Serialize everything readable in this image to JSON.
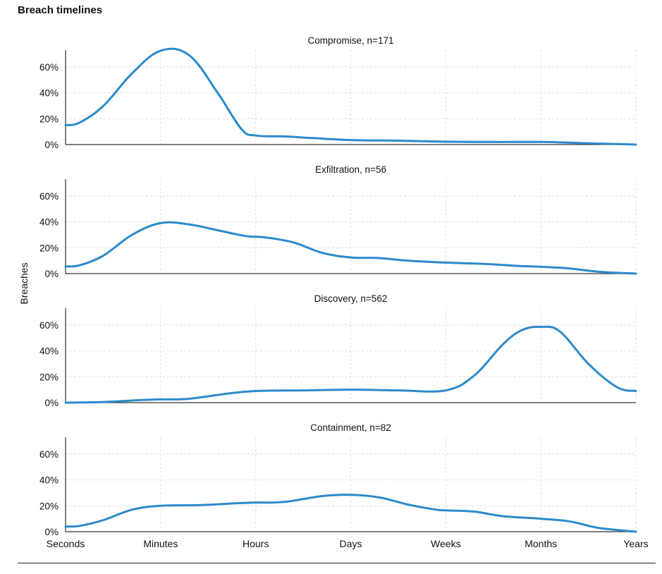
{
  "title": "Breach timelines",
  "chart_data": {
    "type": "area",
    "ylabel": "Breaches",
    "x_categories": [
      "Seconds",
      "Minutes",
      "Hours",
      "Days",
      "Weeks",
      "Months",
      "Years"
    ],
    "y_ticks": [
      "0%",
      "20%",
      "40%",
      "60%"
    ],
    "ylim": [
      0,
      0.73
    ],
    "grid": true,
    "line_color": "#2b8acb",
    "panels": [
      {
        "title": "Compromise, n=171",
        "x": [
          0,
          0.15,
          0.4,
          0.7,
          1.0,
          1.3,
          1.6,
          1.85,
          2.0,
          2.3,
          2.6,
          3.0,
          3.5,
          4.0,
          4.5,
          5.0,
          5.5,
          6.0
        ],
        "y": [
          0.15,
          0.17,
          0.3,
          0.55,
          0.725,
          0.69,
          0.4,
          0.12,
          0.07,
          0.063,
          0.05,
          0.035,
          0.03,
          0.022,
          0.02,
          0.02,
          0.01,
          0.0
        ]
      },
      {
        "title": "Exfiltration, n=56",
        "x": [
          0,
          0.15,
          0.4,
          0.7,
          1.0,
          1.3,
          1.6,
          1.9,
          2.1,
          2.4,
          2.7,
          3.0,
          3.3,
          3.6,
          4.0,
          4.4,
          4.8,
          5.0,
          5.3,
          5.6,
          6.0
        ],
        "y": [
          0.055,
          0.065,
          0.14,
          0.3,
          0.39,
          0.38,
          0.335,
          0.29,
          0.28,
          0.24,
          0.16,
          0.125,
          0.12,
          0.1,
          0.085,
          0.075,
          0.058,
          0.053,
          0.04,
          0.015,
          0.0
        ]
      },
      {
        "title": "Discovery, n=562",
        "x": [
          0,
          0.4,
          0.8,
          1.0,
          1.3,
          1.7,
          2.0,
          2.5,
          3.0,
          3.5,
          4.0,
          4.3,
          4.6,
          4.8,
          5.0,
          5.2,
          5.5,
          5.8,
          6.0
        ],
        "y": [
          0.0,
          0.005,
          0.02,
          0.025,
          0.03,
          0.07,
          0.09,
          0.095,
          0.1,
          0.095,
          0.095,
          0.21,
          0.45,
          0.56,
          0.585,
          0.55,
          0.3,
          0.12,
          0.09
        ]
      },
      {
        "title": "Containment, n=82",
        "x": [
          0,
          0.15,
          0.4,
          0.7,
          1.0,
          1.4,
          1.8,
          2.0,
          2.3,
          2.7,
          3.0,
          3.3,
          3.6,
          3.9,
          4.0,
          4.3,
          4.6,
          5.0,
          5.3,
          5.6,
          6.0
        ],
        "y": [
          0.04,
          0.045,
          0.09,
          0.17,
          0.2,
          0.205,
          0.22,
          0.225,
          0.23,
          0.275,
          0.285,
          0.265,
          0.21,
          0.17,
          0.165,
          0.155,
          0.12,
          0.1,
          0.08,
          0.03,
          0.0
        ]
      }
    ]
  }
}
